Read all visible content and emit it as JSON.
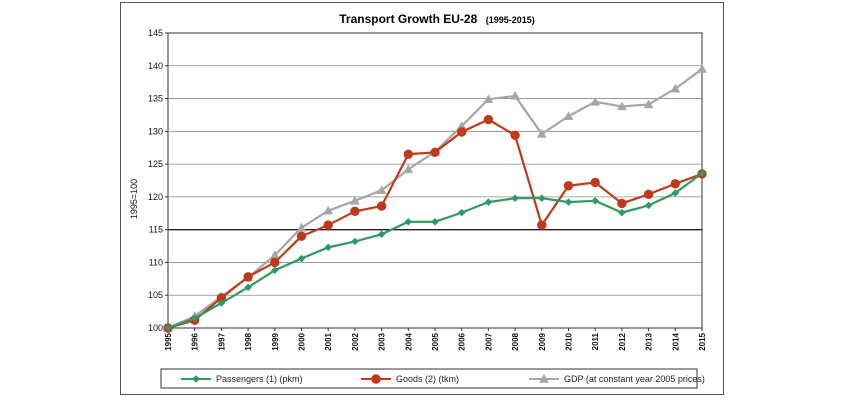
{
  "chart_data": {
    "type": "line",
    "title": "Transport Growth EU-28",
    "subtitle": "(1995-2015)",
    "xlabel": "",
    "ylabel": "1995=100",
    "ylim": [
      100,
      145
    ],
    "yticks": [
      100,
      105,
      110,
      115,
      120,
      125,
      130,
      135,
      140,
      145
    ],
    "x": [
      "1995",
      "1996",
      "1997",
      "1998",
      "1999",
      "2000",
      "2001",
      "2002",
      "2003",
      "2004",
      "2005",
      "2006",
      "2007",
      "2008",
      "2009",
      "2010",
      "2011",
      "2012",
      "2013",
      "2014",
      "2015"
    ],
    "grid": true,
    "reference_line": 115,
    "legend_position": "bottom",
    "series": [
      {
        "name": "Passengers (1) (pkm)",
        "color": "#2e9a5e",
        "marker": "diamond",
        "values": [
          100,
          101.5,
          103.8,
          106.2,
          108.8,
          110.6,
          112.3,
          113.2,
          114.3,
          116.2,
          116.2,
          117.6,
          119.2,
          119.8,
          119.8,
          119.2,
          119.4,
          117.6,
          118.7,
          120.6,
          123.6
        ]
      },
      {
        "name": "Goods (2) (tkm)",
        "color": "#c0391b",
        "marker": "circle",
        "values": [
          100,
          101.2,
          104.6,
          107.8,
          110.0,
          114.0,
          115.7,
          117.8,
          118.6,
          126.5,
          126.8,
          129.9,
          131.8,
          129.4,
          115.7,
          121.7,
          122.2,
          119.0,
          120.4,
          122.0,
          123.5
        ]
      },
      {
        "name": "GDP (at constant year 2005 prices)",
        "color": "#a6a6a6",
        "marker": "triangle",
        "values": [
          100,
          101.8,
          104.8,
          107.7,
          111.1,
          115.3,
          117.9,
          119.4,
          121.0,
          124.2,
          126.9,
          130.8,
          134.9,
          135.4,
          129.6,
          132.3,
          134.5,
          133.8,
          134.1,
          136.5,
          139.5
        ]
      }
    ]
  }
}
